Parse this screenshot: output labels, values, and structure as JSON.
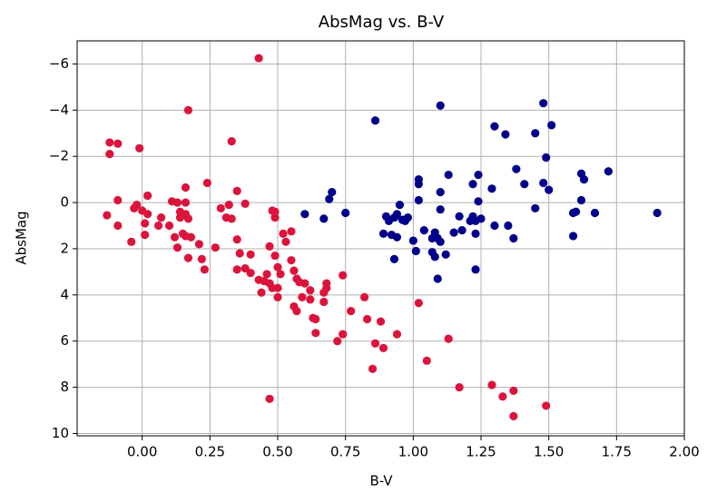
{
  "chart_data": {
    "type": "scatter",
    "title": "AbsMag vs. B-V",
    "x_label": "B-V",
    "y_label": "AbsMag",
    "grid": true,
    "xlim": [
      -0.24,
      2.0
    ],
    "ylim": [
      10.1,
      -7.0
    ],
    "xticks": [
      {
        "value": 0,
        "label": "0.00"
      },
      {
        "value": 0.25,
        "label": "0.25"
      },
      {
        "value": 0.5,
        "label": "0.50"
      },
      {
        "value": 0.75,
        "label": "0.75"
      },
      {
        "value": 1,
        "label": "1.00"
      },
      {
        "value": 1.25,
        "label": "1.25"
      },
      {
        "value": 1.5,
        "label": "1.50"
      },
      {
        "value": 1.75,
        "label": "1.75"
      },
      {
        "value": 2,
        "label": "2.00"
      }
    ],
    "yticks": [
      {
        "value": -6,
        "label": "−6"
      },
      {
        "value": -4,
        "label": "−4"
      },
      {
        "value": -2,
        "label": "−2"
      },
      0,
      2,
      4,
      6,
      8,
      10
    ],
    "series": [
      {
        "color": "#dc143c",
        "x": [
          -0.13,
          -0.12,
          -0.12,
          -0.09,
          -0.01,
          -0.09,
          -0.09,
          -0.04,
          -0.03,
          -0.02,
          0,
          0.02,
          0.01,
          0.01,
          0.02,
          0.07,
          0.06,
          0.1,
          0.11,
          0.13,
          0.14,
          0.14,
          0.13,
          0.12,
          0.15,
          0.16,
          0.17,
          0.16,
          0.16,
          0.17,
          0.17,
          0.16,
          0.18,
          0.21,
          0.22,
          0.23,
          0.24,
          0.29,
          0.31,
          0.32,
          0.33,
          0.33,
          0.27,
          0.35,
          0.35,
          0.35,
          0.36,
          0.38,
          0.38,
          0.4,
          0.4,
          0.43,
          0.43,
          0.44,
          0.45,
          0.46,
          0.47,
          0.48,
          0.48,
          0.49,
          0.49,
          0.47,
          0.49,
          0.47,
          0.5,
          0.51,
          0.5,
          0.5,
          0.52,
          0.53,
          0.55,
          0.55,
          0.56,
          0.57,
          0.56,
          0.57,
          0.58,
          0.59,
          0.6,
          0.62,
          0.62,
          0.63,
          0.64,
          0.64,
          0.67,
          0.67,
          0.68,
          0.68,
          0.72,
          0.74,
          0.74,
          0.77,
          0.82,
          0.83,
          0.85,
          0.86,
          0.88,
          0.89,
          0.94,
          1.02,
          1.05,
          1.13,
          1.17,
          1.29,
          1.33,
          1.37,
          1.37,
          1.49
        ],
        "y": [
          0.55,
          -2.6,
          -2.1,
          -2.55,
          -2.35,
          -0.1,
          1.0,
          1.7,
          0.25,
          0.1,
          0.35,
          0.5,
          0.9,
          1.4,
          -0.3,
          0.65,
          1.0,
          1.0,
          -0.05,
          0,
          0.4,
          0.65,
          1.95,
          1.5,
          1.35,
          0.5,
          0.7,
          0,
          -0.65,
          -4.0,
          2.4,
          1.45,
          1.5,
          1.8,
          2.45,
          2.9,
          -0.85,
          0.25,
          0.65,
          0.1,
          0.7,
          -2.65,
          1.95,
          1.6,
          2.9,
          -0.5,
          2.2,
          0.05,
          2.85,
          3.05,
          2.25,
          3.35,
          -6.25,
          3.9,
          3.4,
          3.1,
          3.5,
          3.7,
          0.35,
          0.65,
          0.4,
          1.9,
          2.3,
          8.5,
          2.8,
          3.1,
          4.1,
          3.7,
          1.35,
          1.7,
          1.25,
          2.5,
          2.95,
          3.3,
          4.5,
          4.7,
          3.45,
          4.1,
          3.5,
          3.8,
          4.2,
          5.0,
          5.65,
          5.05,
          3.9,
          4.3,
          3.5,
          3.7,
          6.0,
          5.7,
          3.15,
          4.7,
          4.1,
          5.05,
          7.2,
          6.1,
          5.15,
          6.3,
          5.7,
          4.35,
          6.85,
          5.9,
          8.0,
          7.9,
          8.4,
          8.15,
          9.25,
          8.8
        ]
      },
      {
        "color": "#00008b",
        "x": [
          0.6,
          0.67,
          0.69,
          0.7,
          0.75,
          0.86,
          0.89,
          0.9,
          0.91,
          0.92,
          0.93,
          0.94,
          0.95,
          0.94,
          0.93,
          0.96,
          0.97,
          0.98,
          1.0,
          1.01,
          1.02,
          1.02,
          1.02,
          1.04,
          1.07,
          1.08,
          1.07,
          1.08,
          1.09,
          1.1,
          1.1,
          1.1,
          1.1,
          1.12,
          1.09,
          1.13,
          1.15,
          1.17,
          1.18,
          1.21,
          1.22,
          1.22,
          1.23,
          1.23,
          1.23,
          1.24,
          1.24,
          1.25,
          1.29,
          1.3,
          1.3,
          1.34,
          1.35,
          1.38,
          1.37,
          1.41,
          1.45,
          1.45,
          1.48,
          1.48,
          1.49,
          1.5,
          1.51,
          1.59,
          1.59,
          1.6,
          1.62,
          1.62,
          1.63,
          1.67,
          1.72,
          1.9
        ],
        "y": [
          0.5,
          0.7,
          -0.15,
          -0.45,
          0.45,
          -3.55,
          1.35,
          0.6,
          0.8,
          1.4,
          0.65,
          0.5,
          0.1,
          1.5,
          2.45,
          0.75,
          0.8,
          0.65,
          1.65,
          2.1,
          -0.1,
          -0.8,
          -1.0,
          1.2,
          1.55,
          2.35,
          2.15,
          1.3,
          1.55,
          1.7,
          0.3,
          -4.2,
          -0.45,
          2.25,
          3.3,
          -1.2,
          1.3,
          0.6,
          1.2,
          0.8,
          0.6,
          -0.8,
          1.35,
          2.9,
          0.8,
          -0.05,
          -1.2,
          0.7,
          -0.6,
          -3.3,
          1.0,
          -2.95,
          1.0,
          -1.45,
          1.55,
          -0.8,
          -3.0,
          0.25,
          -4.3,
          -0.85,
          -1.95,
          -0.55,
          -3.35,
          0.45,
          1.45,
          0.4,
          -1.25,
          -0.1,
          -1.0,
          0.45,
          -1.35,
          0.45
        ]
      }
    ]
  }
}
